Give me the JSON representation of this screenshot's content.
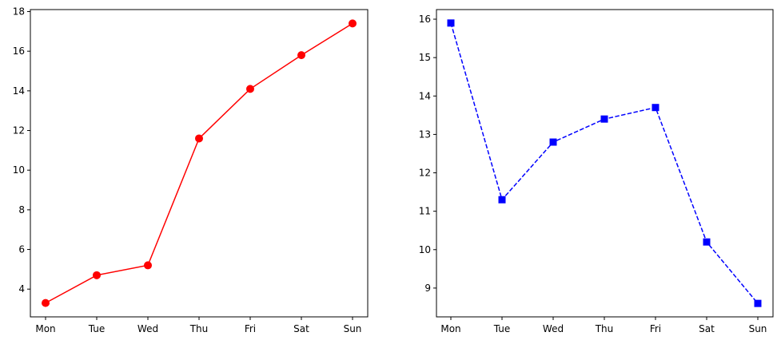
{
  "chart_data": [
    {
      "type": "line",
      "categories": [
        "Mon",
        "Tue",
        "Wed",
        "Thu",
        "Fri",
        "Sat",
        "Sun"
      ],
      "series": [
        {
          "values": [
            3.3,
            4.7,
            5.2,
            11.6,
            14.1,
            15.8,
            17.4
          ],
          "color": "#ff0000",
          "marker": "circle",
          "linestyle": "solid"
        }
      ],
      "title": "",
      "xlabel": "",
      "ylabel": "",
      "ylim": [
        2.6,
        18.1
      ],
      "yticks": [
        4,
        6,
        8,
        10,
        12,
        14,
        16,
        18
      ],
      "grid": false
    },
    {
      "type": "line",
      "categories": [
        "Mon",
        "Tue",
        "Wed",
        "Thu",
        "Fri",
        "Sat",
        "Sun"
      ],
      "series": [
        {
          "values": [
            15.9,
            11.3,
            12.8,
            13.4,
            13.7,
            10.2,
            8.6
          ],
          "color": "#0000ff",
          "marker": "square",
          "linestyle": "dashed"
        }
      ],
      "title": "",
      "xlabel": "",
      "ylabel": "",
      "ylim": [
        8.25,
        16.25
      ],
      "yticks": [
        9,
        10,
        11,
        12,
        13,
        14,
        15,
        16
      ],
      "grid": false
    }
  ]
}
